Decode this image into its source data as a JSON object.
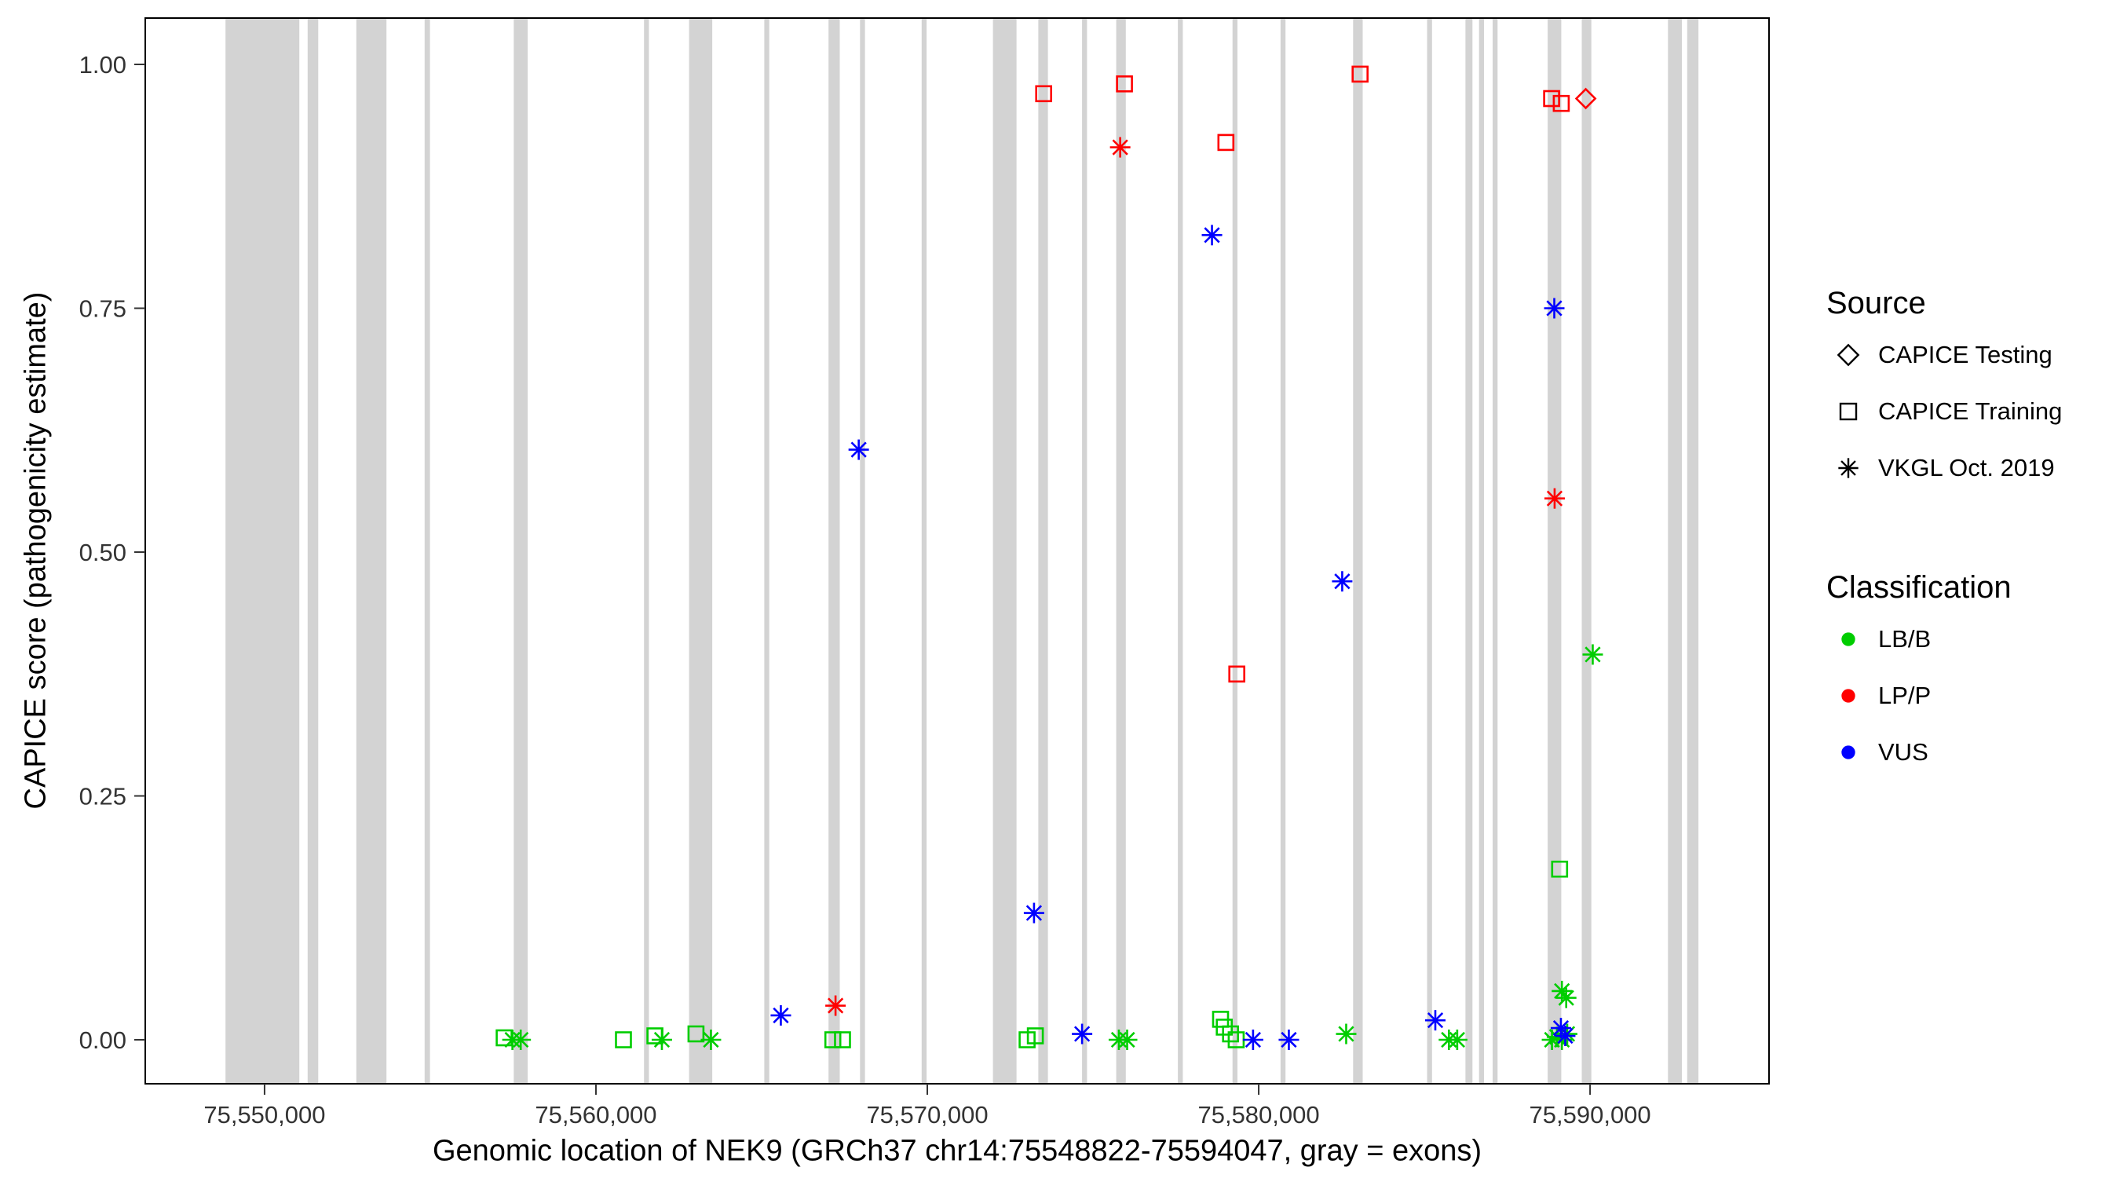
{
  "legend": {
    "source": {
      "title": "Source",
      "items": [
        {
          "shape": "diamond",
          "label": "CAPICE Testing"
        },
        {
          "shape": "square",
          "label": "CAPICE Training"
        },
        {
          "shape": "asterisk",
          "label": "VKGL Oct. 2019"
        }
      ]
    },
    "classification": {
      "title": "Classification",
      "items": [
        {
          "color": "#00CD00",
          "label": "LB/B"
        },
        {
          "color": "#FF0000",
          "label": "LP/P"
        },
        {
          "color": "#0000FF",
          "label": "VUS"
        }
      ]
    }
  },
  "chart_data": {
    "type": "scatter",
    "title": "",
    "xlabel": "Genomic location of NEK9 (GRCh37 chr14:75548822-75594047, gray = exons)",
    "ylabel": "CAPICE score (pathogenicity estimate)",
    "x_range": [
      75546400,
      75595400
    ],
    "y_range": [
      0,
      1
    ],
    "grid": "off",
    "legend_position": "right",
    "x_ticks": [
      {
        "value": 75550000,
        "label": "75,550,000"
      },
      {
        "value": 75560000,
        "label": "75,560,000"
      },
      {
        "value": 75570000,
        "label": "75,570,000"
      },
      {
        "value": 75580000,
        "label": "75,580,000"
      },
      {
        "value": 75590000,
        "label": "75,590,000"
      }
    ],
    "y_ticks": [
      {
        "value": 0.0,
        "label": "0.00"
      },
      {
        "value": 0.25,
        "label": "0.25"
      },
      {
        "value": 0.5,
        "label": "0.50"
      },
      {
        "value": 0.75,
        "label": "0.75"
      },
      {
        "value": 1.0,
        "label": "1.00"
      }
    ],
    "colors": {
      "exon": "#D3D3D3",
      "panel_border": "#000000"
    },
    "exons": [
      [
        75548822,
        75551050
      ],
      [
        75551300,
        75551620
      ],
      [
        75552770,
        75553680
      ],
      [
        75554830,
        75554990
      ],
      [
        75557520,
        75557940
      ],
      [
        75561450,
        75561600
      ],
      [
        75562810,
        75563510
      ],
      [
        75565080,
        75565230
      ],
      [
        75567020,
        75567360
      ],
      [
        75567970,
        75568120
      ],
      [
        75569830,
        75569980
      ],
      [
        75571980,
        75572690
      ],
      [
        75573350,
        75573640
      ],
      [
        75574670,
        75574820
      ],
      [
        75575700,
        75575990
      ],
      [
        75577560,
        75577710
      ],
      [
        75579210,
        75579360
      ],
      [
        75580660,
        75580810
      ],
      [
        75582850,
        75583140
      ],
      [
        75585080,
        75585230
      ],
      [
        75586240,
        75586450
      ],
      [
        75586650,
        75586800
      ],
      [
        75587060,
        75587210
      ],
      [
        75588720,
        75589130
      ],
      [
        75589750,
        75590040
      ],
      [
        75592350,
        75592770
      ],
      [
        75592930,
        75593270
      ]
    ],
    "points": [
      {
        "x": 75557230,
        "y": 0.002,
        "classification": "LB/B",
        "source": "CAPICE Training"
      },
      {
        "x": 75560830,
        "y": 0.0,
        "classification": "LB/B",
        "source": "CAPICE Training"
      },
      {
        "x": 75561780,
        "y": 0.004,
        "classification": "LB/B",
        "source": "CAPICE Training"
      },
      {
        "x": 75563020,
        "y": 0.006,
        "classification": "LB/B",
        "source": "CAPICE Training"
      },
      {
        "x": 75567150,
        "y": 0.0,
        "classification": "LB/B",
        "source": "CAPICE Training"
      },
      {
        "x": 75567440,
        "y": 0.0,
        "classification": "LB/B",
        "source": "CAPICE Training"
      },
      {
        "x": 75573010,
        "y": 0.0,
        "classification": "LB/B",
        "source": "CAPICE Training"
      },
      {
        "x": 75573260,
        "y": 0.004,
        "classification": "LB/B",
        "source": "CAPICE Training"
      },
      {
        "x": 75578850,
        "y": 0.021,
        "classification": "LB/B",
        "source": "CAPICE Training"
      },
      {
        "x": 75578960,
        "y": 0.013,
        "classification": "LB/B",
        "source": "CAPICE Training"
      },
      {
        "x": 75579150,
        "y": 0.006,
        "classification": "LB/B",
        "source": "CAPICE Training"
      },
      {
        "x": 75579320,
        "y": 0.0,
        "classification": "LB/B",
        "source": "CAPICE Training"
      },
      {
        "x": 75589080,
        "y": 0.175,
        "classification": "LB/B",
        "source": "CAPICE Training"
      },
      {
        "x": 75557480,
        "y": 0.0,
        "classification": "LB/B",
        "source": "VKGL Oct. 2019"
      },
      {
        "x": 75557730,
        "y": 0.0,
        "classification": "LB/B",
        "source": "VKGL Oct. 2019"
      },
      {
        "x": 75561990,
        "y": 0.0,
        "classification": "LB/B",
        "source": "VKGL Oct. 2019"
      },
      {
        "x": 75563470,
        "y": 0.0,
        "classification": "LB/B",
        "source": "VKGL Oct. 2019"
      },
      {
        "x": 75575780,
        "y": 0.0,
        "classification": "LB/B",
        "source": "VKGL Oct. 2019"
      },
      {
        "x": 75576030,
        "y": 0.0,
        "classification": "LB/B",
        "source": "VKGL Oct. 2019"
      },
      {
        "x": 75582640,
        "y": 0.006,
        "classification": "LB/B",
        "source": "VKGL Oct. 2019"
      },
      {
        "x": 75585740,
        "y": 0.0,
        "classification": "LB/B",
        "source": "VKGL Oct. 2019"
      },
      {
        "x": 75585990,
        "y": 0.0,
        "classification": "LB/B",
        "source": "VKGL Oct. 2019"
      },
      {
        "x": 75588850,
        "y": 0.0,
        "classification": "LB/B",
        "source": "VKGL Oct. 2019"
      },
      {
        "x": 75589000,
        "y": 0.003,
        "classification": "LB/B",
        "source": "VKGL Oct. 2019"
      },
      {
        "x": 75589150,
        "y": 0.0,
        "classification": "LB/B",
        "source": "VKGL Oct. 2019"
      },
      {
        "x": 75589310,
        "y": 0.006,
        "classification": "LB/B",
        "source": "VKGL Oct. 2019"
      },
      {
        "x": 75589150,
        "y": 0.05,
        "classification": "LB/B",
        "source": "VKGL Oct. 2019"
      },
      {
        "x": 75589280,
        "y": 0.043,
        "classification": "LB/B",
        "source": "VKGL Oct. 2019"
      },
      {
        "x": 75590080,
        "y": 0.395,
        "classification": "LB/B",
        "source": "VKGL Oct. 2019"
      },
      {
        "x": 75567230,
        "y": 0.035,
        "classification": "LP/P",
        "source": "VKGL Oct. 2019"
      },
      {
        "x": 75573510,
        "y": 0.97,
        "classification": "LP/P",
        "source": "CAPICE Training"
      },
      {
        "x": 75575820,
        "y": 0.915,
        "classification": "LP/P",
        "source": "VKGL Oct. 2019"
      },
      {
        "x": 75575950,
        "y": 0.98,
        "classification": "LP/P",
        "source": "CAPICE Training"
      },
      {
        "x": 75579010,
        "y": 0.92,
        "classification": "LP/P",
        "source": "CAPICE Training"
      },
      {
        "x": 75579340,
        "y": 0.375,
        "classification": "LP/P",
        "source": "CAPICE Training"
      },
      {
        "x": 75583060,
        "y": 0.99,
        "classification": "LP/P",
        "source": "CAPICE Training"
      },
      {
        "x": 75588840,
        "y": 0.965,
        "classification": "LP/P",
        "source": "CAPICE Training"
      },
      {
        "x": 75589130,
        "y": 0.96,
        "classification": "LP/P",
        "source": "CAPICE Training"
      },
      {
        "x": 75588930,
        "y": 0.555,
        "classification": "LP/P",
        "source": "VKGL Oct. 2019"
      },
      {
        "x": 75589870,
        "y": 0.965,
        "classification": "LP/P",
        "source": "CAPICE Testing"
      },
      {
        "x": 75565580,
        "y": 0.025,
        "classification": "VUS",
        "source": "VKGL Oct. 2019"
      },
      {
        "x": 75567930,
        "y": 0.605,
        "classification": "VUS",
        "source": "VKGL Oct. 2019"
      },
      {
        "x": 75573220,
        "y": 0.13,
        "classification": "VUS",
        "source": "VKGL Oct. 2019"
      },
      {
        "x": 75574670,
        "y": 0.006,
        "classification": "VUS",
        "source": "VKGL Oct. 2019"
      },
      {
        "x": 75578590,
        "y": 0.825,
        "classification": "VUS",
        "source": "VKGL Oct. 2019"
      },
      {
        "x": 75579830,
        "y": 0.0,
        "classification": "VUS",
        "source": "VKGL Oct. 2019"
      },
      {
        "x": 75580910,
        "y": 0.0,
        "classification": "VUS",
        "source": "VKGL Oct. 2019"
      },
      {
        "x": 75582520,
        "y": 0.47,
        "classification": "VUS",
        "source": "VKGL Oct. 2019"
      },
      {
        "x": 75585330,
        "y": 0.02,
        "classification": "VUS",
        "source": "VKGL Oct. 2019"
      },
      {
        "x": 75588920,
        "y": 0.75,
        "classification": "VUS",
        "source": "VKGL Oct. 2019"
      },
      {
        "x": 75589120,
        "y": 0.012,
        "classification": "VUS",
        "source": "VKGL Oct. 2019"
      },
      {
        "x": 75589250,
        "y": 0.004,
        "classification": "VUS",
        "source": "VKGL Oct. 2019"
      }
    ]
  }
}
